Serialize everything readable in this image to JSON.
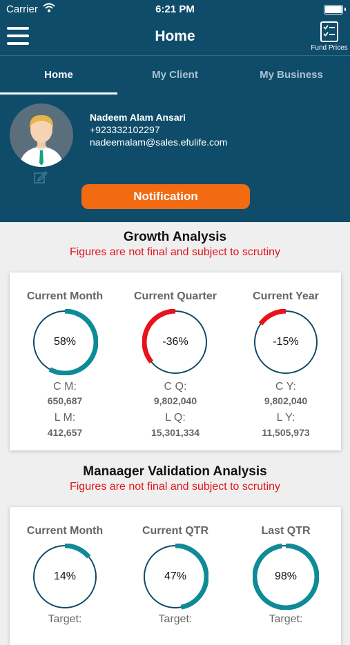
{
  "status": {
    "carrier": "Carrier",
    "time": "6:21 PM"
  },
  "navbar": {
    "title": "Home",
    "fund_prices": "Fund Prices"
  },
  "tabs": [
    {
      "label": "Home",
      "active": true
    },
    {
      "label": "My Client"
    },
    {
      "label": "My Business"
    }
  ],
  "profile": {
    "name": "Nadeem Alam Ansari",
    "phone": "+923332102297",
    "email": "nadeemalam@sales.efulife.com"
  },
  "notification_label": "Notification",
  "growth": {
    "title": "Growth Analysis",
    "subtitle": "Figures are not final and subject to scrutiny",
    "columns": [
      {
        "label": "Current Month",
        "percent": 58,
        "pct_text": "58%",
        "l1": "C M:",
        "v1": "650,687",
        "l2": "L M:",
        "v2": "412,657"
      },
      {
        "label": "Current Quarter",
        "percent": -36,
        "pct_text": "-36%",
        "l1": "C Q:",
        "v1": "9,802,040",
        "l2": "L Q:",
        "v2": "15,301,334"
      },
      {
        "label": "Current Year",
        "percent": -15,
        "pct_text": "-15%",
        "l1": "C Y:",
        "v1": "9,802,040",
        "l2": "L Y:",
        "v2": "11,505,973"
      }
    ]
  },
  "validation": {
    "title": "Manaager Validation Analysis",
    "subtitle": "Figures are not final and subject to scrutiny",
    "columns": [
      {
        "label": "Current Month",
        "percent": 14,
        "pct_text": "14%",
        "l1": "Target:"
      },
      {
        "label": "Current QTR",
        "percent": 47,
        "pct_text": "47%",
        "l1": "Target:"
      },
      {
        "label": "Last QTR",
        "percent": 98,
        "pct_text": "98%",
        "l1": "Target:"
      }
    ]
  },
  "colors": {
    "header": "#0f4c6a",
    "accent_positive": "#0e8b96",
    "accent_negative": "#e8121a",
    "button": "#f26b12",
    "warning_text": "#e0161b"
  }
}
